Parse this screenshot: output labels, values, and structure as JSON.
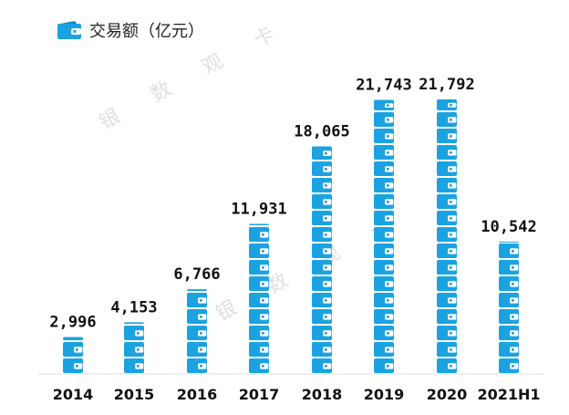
{
  "chart_data": {
    "type": "bar",
    "legend": {
      "label": "交易额（亿元）",
      "icon": "wallet-icon",
      "position": "top-left"
    },
    "categories": [
      "2014",
      "2015",
      "2016",
      "2017",
      "2018",
      "2019",
      "2020",
      "2021H1"
    ],
    "values": [
      2996,
      4153,
      6766,
      11931,
      18065,
      21743,
      21792,
      10542
    ],
    "value_labels": [
      "2,996",
      "4,153",
      "6,766",
      "11,931",
      "18,065",
      "21,743",
      "21,792",
      "10,542"
    ],
    "ylim": [
      0,
      22500
    ],
    "grid": false,
    "colors": {
      "bar": "#1aa3e0",
      "bar_dark": "#0d88c4",
      "axis": "#dddddd"
    },
    "watermark": "银数观卡"
  }
}
